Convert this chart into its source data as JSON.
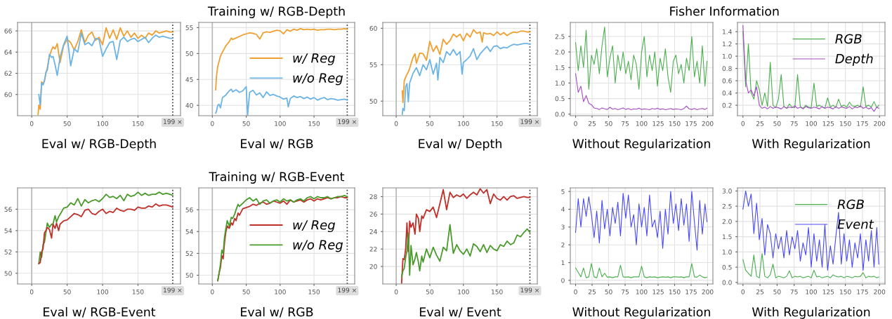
{
  "chart_data": [
    {
      "type": "line",
      "xlabel": "Eval w/ RGB-Depth",
      "xlim": [
        -20,
        210
      ],
      "xticks": [
        0,
        50,
        100,
        150
      ],
      "ylim": [
        58,
        66.8
      ],
      "yticks": [
        60,
        62,
        64,
        66
      ],
      "grid": true,
      "x": [
        9,
        10,
        12,
        14,
        16,
        18,
        20,
        22,
        25,
        28,
        30,
        33,
        36,
        40,
        45,
        50,
        55,
        60,
        65,
        70,
        75,
        80,
        85,
        90,
        95,
        100,
        105,
        110,
        115,
        120,
        125,
        130,
        135,
        140,
        145,
        150,
        155,
        160,
        165,
        170,
        175,
        180,
        185,
        190,
        195,
        199
      ],
      "series": [
        {
          "color": "#f0a030",
          "values": [
            58.1,
            59.0,
            58.6,
            61.2,
            61.0,
            61.3,
            62.0,
            62.5,
            63.6,
            64.2,
            64.5,
            64.3,
            64.8,
            63.0,
            64.6,
            65.2,
            64.9,
            64.2,
            65.0,
            66.1,
            64.9,
            65.6,
            65.9,
            65.1,
            65.4,
            64.7,
            66.3,
            65.3,
            66.1,
            65.2,
            66.3,
            65.5,
            66.0,
            65.4,
            65.8,
            65.3,
            65.6,
            65.3,
            65.8,
            65.6,
            66.0,
            65.8,
            65.9,
            66.0,
            65.9,
            65.9
          ]
        },
        {
          "color": "#6cb4e4",
          "values": [
            null,
            60.0,
            59.0,
            61.1,
            60.9,
            61.3,
            62.1,
            62.3,
            63.8,
            63.5,
            63.6,
            62.8,
            61.8,
            63.5,
            64.7,
            65.5,
            62.7,
            64.3,
            64.0,
            65.8,
            64.7,
            64.9,
            64.6,
            65.3,
            65.2,
            63.6,
            64.3,
            64.9,
            65.0,
            63.3,
            65.1,
            65.4,
            65.0,
            65.2,
            65.3,
            65.0,
            65.2,
            65.4,
            64.9,
            65.3,
            65.6,
            65.4,
            65.5,
            65.4,
            65.3,
            65.3
          ]
        }
      ],
      "ref_lines": [
        {
          "axis": "x",
          "value": 0,
          "color": "#b8b8b8",
          "line_style": "solid"
        },
        {
          "axis": "x",
          "value": 199,
          "label": "199 ×",
          "color": "#333333",
          "line_style": "dotted"
        }
      ]
    },
    {
      "type": "line",
      "title": "Training w/ RGB-Depth",
      "xlabel": "Eval w/ RGB",
      "xlim": [
        -20,
        210
      ],
      "xticks": [
        0,
        50,
        100,
        150
      ],
      "ylim": [
        38,
        56
      ],
      "yticks": [
        40,
        45,
        50,
        55
      ],
      "grid": true,
      "legend": "right",
      "series": [
        {
          "name": "w/ Reg",
          "color": "#f0a030",
          "x": [
            5,
            6,
            8,
            10,
            12,
            15,
            18,
            20,
            25,
            28,
            30,
            35,
            40,
            45,
            50,
            55,
            60,
            65,
            70,
            75,
            80,
            85,
            90,
            95,
            100,
            105,
            110,
            115,
            120,
            125,
            130,
            135,
            140,
            145,
            150,
            155,
            160,
            165,
            170,
            175,
            180,
            185,
            190,
            195,
            199
          ],
          "values": [
            43,
            45.5,
            47.5,
            48.5,
            49.5,
            50.3,
            51,
            51.5,
            52.3,
            53,
            52.7,
            53,
            53.3,
            53.6,
            53.8,
            54,
            53.9,
            53.7,
            52.8,
            54,
            54.2,
            54.1,
            54.3,
            54.5,
            54.4,
            53.8,
            54.6,
            54.3,
            54.7,
            54.5,
            54.8,
            54.6,
            54.7,
            54.6,
            54.7,
            54.5,
            54.6,
            54.6,
            54.7,
            54.7,
            54.6,
            54.7,
            54.7,
            54.8,
            54.7
          ]
        },
        {
          "name": "w/o Reg",
          "color": "#6cb4e4",
          "x": [
            5,
            6,
            8,
            10,
            12,
            15,
            18,
            20,
            25,
            28,
            30,
            35,
            40,
            45,
            50,
            52,
            55,
            60,
            65,
            70,
            75,
            80,
            85,
            90,
            95,
            100,
            105,
            110,
            112,
            115,
            120,
            125,
            130,
            135,
            140,
            145,
            150,
            155,
            160,
            165,
            170,
            175,
            180,
            185,
            190,
            195,
            199
          ],
          "values": [
            38.5,
            38.8,
            40,
            40.2,
            39.5,
            41.5,
            41.8,
            42,
            42.8,
            43.1,
            42.6,
            43,
            42.5,
            42.8,
            43.6,
            38.0,
            42.5,
            42.9,
            42,
            42.4,
            41.5,
            42.6,
            41.9,
            42.1,
            41.8,
            41.6,
            41.2,
            41.4,
            39.7,
            41.3,
            41.8,
            41.5,
            41.7,
            41.3,
            41.6,
            41.2,
            41.5,
            41.0,
            41.3,
            41.5,
            41.1,
            41.3,
            41.2,
            41.0,
            41.1,
            41.2,
            41.0
          ]
        }
      ],
      "ref_lines": [
        {
          "axis": "x",
          "value": 0,
          "color": "#b8b8b8",
          "line_style": "solid"
        },
        {
          "axis": "x",
          "value": 199,
          "label": "199 ×",
          "color": "#333333",
          "line_style": "dotted"
        }
      ]
    },
    {
      "type": "line",
      "xlabel": "Eval w/ Depth",
      "xlim": [
        -20,
        210
      ],
      "xticks": [
        0,
        50,
        100,
        150
      ],
      "ylim": [
        48,
        60.8
      ],
      "yticks": [
        50,
        55,
        60
      ],
      "grid": true,
      "series": [
        {
          "color": "#f0a030",
          "x": [
            9,
            10,
            12,
            15,
            18,
            20,
            25,
            28,
            30,
            35,
            40,
            45,
            50,
            55,
            60,
            65,
            70,
            75,
            80,
            85,
            90,
            95,
            100,
            105,
            110,
            115,
            120,
            125,
            128,
            130,
            135,
            140,
            145,
            150,
            155,
            160,
            165,
            170,
            175,
            180,
            185,
            190,
            195,
            199
          ],
          "values": [
            51.4,
            49.8,
            52.8,
            53.5,
            54,
            54.5,
            56,
            56.5,
            55.2,
            56.6,
            56.5,
            55.6,
            58.2,
            56.8,
            57.6,
            56.4,
            58.5,
            57.8,
            58.3,
            59.2,
            58.8,
            59.2,
            58.3,
            59.3,
            58.8,
            59.8,
            59.3,
            59.5,
            58.1,
            59.4,
            59.2,
            59.3,
            59.0,
            59.5,
            59.1,
            59.4,
            59.0,
            59.3,
            59.5,
            59.4,
            59.6,
            59.6,
            59.5,
            59.5
          ]
        },
        {
          "color": "#6cb4e4",
          "x": [
            9,
            10,
            12,
            14,
            16,
            18,
            20,
            25,
            30,
            35,
            40,
            45,
            50,
            55,
            60,
            62,
            65,
            70,
            75,
            80,
            85,
            90,
            95,
            98,
            100,
            105,
            110,
            115,
            120,
            125,
            130,
            135,
            140,
            145,
            150,
            155,
            160,
            165,
            170,
            175,
            180,
            185,
            190,
            195,
            199
          ],
          "values": [
            48.2,
            49,
            48.7,
            52,
            52.4,
            49.9,
            52.5,
            53.8,
            54.6,
            53.5,
            55,
            54.3,
            55.7,
            53.7,
            55.2,
            52.9,
            56.0,
            55.3,
            56.8,
            56.3,
            57.1,
            56.3,
            56.8,
            53.7,
            55.3,
            55.7,
            56.2,
            57.2,
            55.7,
            56.5,
            57.0,
            57.5,
            56.8,
            57.5,
            57.6,
            57.2,
            57.4,
            57.3,
            57.6,
            57.8,
            57.7,
            57.8,
            57.9,
            57.9,
            57.8
          ]
        }
      ],
      "ref_lines": [
        {
          "axis": "x",
          "value": 0,
          "color": "#b8b8b8",
          "line_style": "solid"
        },
        {
          "axis": "x",
          "value": 199,
          "label": "199 ×",
          "color": "#333333",
          "line_style": "dotted"
        }
      ]
    },
    {
      "type": "line",
      "title": "Fisher Information",
      "xlabel": "Without Regularization",
      "xlim": [
        -8,
        208
      ],
      "xticks": [
        0,
        25,
        50,
        75,
        100,
        125,
        150,
        175,
        200
      ],
      "ylim": [
        -0.05,
        2.95
      ],
      "yticks": [
        {
          "value": 0,
          "label": "0.0"
        },
        0.5,
        {
          "value": 1,
          "label": "1.0"
        },
        1.5,
        {
          "value": 2,
          "label": "2.0"
        },
        2.5
      ],
      "grid": true,
      "x": [
        0,
        4,
        8,
        12,
        16,
        20,
        24,
        28,
        32,
        36,
        40,
        44,
        48,
        52,
        56,
        60,
        64,
        68,
        72,
        76,
        80,
        84,
        88,
        92,
        96,
        100,
        104,
        108,
        112,
        116,
        120,
        124,
        128,
        132,
        136,
        140,
        144,
        148,
        152,
        156,
        160,
        164,
        168,
        172,
        176,
        180,
        184,
        188,
        192,
        196,
        199
      ],
      "series": [
        {
          "color": "#4caf50",
          "values": [
            2.3,
            1.4,
            2.2,
            1.5,
            2.7,
            0.8,
            1.9,
            1.6,
            2.1,
            1.3,
            2.2,
            2.8,
            1.2,
            1.8,
            2.2,
            1.0,
            1.9,
            1.4,
            2.0,
            1.3,
            1.7,
            1.1,
            1.9,
            1.6,
            0.8,
            2.0,
            2.5,
            1.2,
            1.9,
            1.4,
            2.0,
            0.9,
            1.8,
            1.4,
            2.1,
            1.2,
            0.7,
            1.7,
            1.9,
            1.3,
            1.6,
            1.0,
            1.8,
            1.4,
            2.5,
            1.2,
            1.7,
            1.0,
            2.2,
            0.9,
            1.7
          ]
        },
        {
          "color": "#a64dc4",
          "values": [
            1.3,
            0.7,
            0.9,
            0.4,
            0.6,
            0.35,
            0.3,
            0.2,
            0.18,
            0.15,
            0.2,
            0.17,
            0.15,
            0.22,
            0.16,
            0.18,
            0.14,
            0.17,
            0.2,
            0.15,
            0.18,
            0.14,
            0.17,
            0.16,
            0.19,
            0.15,
            0.17,
            0.16,
            0.14,
            0.18,
            0.16,
            0.19,
            0.15,
            0.17,
            0.14,
            0.16,
            0.18,
            0.15,
            0.17,
            0.16,
            0.14,
            0.18,
            0.26,
            0.17,
            0.15,
            0.18,
            0.14,
            0.17,
            0.18,
            0.15,
            0.19
          ]
        }
      ]
    },
    {
      "type": "line",
      "xlabel": "With Regularization",
      "xlim": [
        -8,
        208
      ],
      "xticks": [
        0,
        25,
        50,
        75,
        100,
        125,
        150,
        175,
        200
      ],
      "ylim": [
        0.03,
        1.55
      ],
      "yticks": [
        0.2,
        0.4,
        0.6,
        0.8,
        {
          "value": 1,
          "label": "1.0"
        },
        1.2,
        1.4
      ],
      "grid": true,
      "legend": "top right",
      "x": [
        0,
        4,
        8,
        12,
        16,
        20,
        24,
        28,
        32,
        36,
        40,
        44,
        48,
        52,
        56,
        60,
        64,
        68,
        72,
        76,
        80,
        84,
        88,
        92,
        96,
        100,
        104,
        108,
        112,
        116,
        120,
        124,
        128,
        132,
        136,
        140,
        144,
        148,
        152,
        156,
        160,
        164,
        168,
        172,
        176,
        180,
        184,
        188,
        192,
        196,
        199
      ],
      "series": [
        {
          "name": "RGB",
          "color": "#4caf50",
          "values": [
            1.4,
            0.5,
            1.2,
            0.4,
            0.3,
            0.6,
            0.45,
            0.2,
            0.4,
            0.18,
            0.9,
            0.2,
            0.16,
            0.3,
            0.7,
            0.18,
            0.15,
            0.22,
            0.17,
            0.16,
            0.7,
            0.18,
            0.15,
            0.2,
            0.17,
            0.16,
            0.56,
            0.18,
            0.2,
            0.17,
            0.15,
            0.32,
            0.17,
            0.2,
            0.16,
            0.3,
            0.18,
            0.2,
            0.17,
            0.25,
            0.19,
            0.18,
            0.2,
            0.17,
            0.5,
            0.18,
            0.2,
            0.17,
            0.26,
            0.16,
            0.2
          ]
        },
        {
          "name": "Depth",
          "color": "#a64dc4",
          "values": [
            1.5,
            0.6,
            0.4,
            0.45,
            0.35,
            0.5,
            0.2,
            0.15,
            0.17,
            0.14,
            0.18,
            0.15,
            0.17,
            0.16,
            0.14,
            0.18,
            0.15,
            0.17,
            0.16,
            0.19,
            0.15,
            0.17,
            0.14,
            0.18,
            0.16,
            0.15,
            0.17,
            0.16,
            0.14,
            0.18,
            0.15,
            0.17,
            0.16,
            0.14,
            0.18,
            0.15,
            0.17,
            0.16,
            0.15,
            0.18,
            0.14,
            0.17,
            0.16,
            0.19,
            0.15,
            0.17,
            0.14,
            0.16,
            0.1,
            0.17,
            0.15
          ]
        }
      ]
    },
    {
      "type": "line",
      "xlabel": "Eval w/ RGB-Event",
      "xlim": [
        -20,
        210
      ],
      "xticks": [
        0,
        50,
        100,
        150
      ],
      "ylim": [
        49,
        58
      ],
      "yticks": [
        50,
        52,
        54,
        56
      ],
      "grid": true,
      "x": [
        10,
        12,
        14,
        16,
        18,
        20,
        22,
        25,
        28,
        30,
        33,
        35,
        38,
        40,
        45,
        50,
        55,
        60,
        65,
        70,
        75,
        80,
        85,
        90,
        95,
        100,
        105,
        110,
        115,
        120,
        125,
        130,
        135,
        140,
        145,
        150,
        155,
        160,
        165,
        170,
        175,
        180,
        185,
        190,
        195,
        199
      ],
      "series": [
        {
          "color": "#4a9a2c",
          "values": [
            50.9,
            52,
            51.5,
            52.7,
            52.9,
            53.8,
            54.7,
            54.3,
            54.6,
            54.6,
            55.4,
            54.8,
            55.3,
            55.5,
            56.1,
            56.2,
            56.6,
            56.4,
            57.0,
            56.3,
            56.9,
            56.6,
            56.8,
            56.9,
            56.7,
            57.0,
            57.4,
            57.1,
            57.2,
            57.0,
            57.3,
            56.8,
            57.4,
            57.2,
            57.3,
            57.6,
            57.3,
            57.5,
            57.3,
            57.4,
            57.4,
            57.6,
            57.4,
            57.5,
            57.4,
            57.3
          ]
        },
        {
          "color": "#c0302a",
          "values": [
            50.9,
            51.0,
            52,
            52.3,
            53.8,
            54.0,
            54.3,
            54.1,
            53.3,
            54.6,
            54.2,
            54.7,
            54.0,
            54.6,
            54.9,
            55.0,
            55.3,
            55.6,
            55.5,
            55.3,
            55.9,
            56.0,
            55.6,
            55.5,
            55.8,
            56.0,
            55.6,
            55.8,
            55.7,
            56.1,
            55.9,
            55.8,
            56.0,
            56.0,
            55.9,
            56.2,
            56.1,
            56.1,
            56.3,
            56.2,
            56.5,
            56.3,
            56.4,
            56.4,
            56.3,
            56.2
          ]
        }
      ],
      "ref_lines": [
        {
          "axis": "x",
          "value": 0,
          "color": "#b8b8b8",
          "line_style": "solid"
        },
        {
          "axis": "x",
          "value": 199,
          "label": "199 ×",
          "color": "#333333",
          "line_style": "dotted"
        }
      ]
    },
    {
      "type": "line",
      "title": "Training w/ RGB-Event",
      "xlabel": "Eval w/ RGB",
      "xlim": [
        -20,
        210
      ],
      "xticks": [
        0,
        50,
        100,
        150
      ],
      "ylim": [
        49.2,
        58
      ],
      "yticks": [
        50,
        52,
        54,
        56
      ],
      "grid": true,
      "legend": "right",
      "x": [
        8,
        10,
        12,
        14,
        16,
        18,
        20,
        22,
        25,
        28,
        30,
        33,
        35,
        38,
        40,
        45,
        50,
        55,
        60,
        65,
        70,
        75,
        80,
        85,
        90,
        95,
        100,
        105,
        110,
        115,
        120,
        125,
        130,
        135,
        140,
        145,
        150,
        155,
        160,
        165,
        170,
        175,
        180,
        185,
        190,
        195,
        199
      ],
      "series": [
        {
          "name": "w/ Reg",
          "color": "#c0302a",
          "values": [
            49.5,
            50.2,
            50.7,
            51.8,
            51.5,
            53.0,
            54.0,
            54.5,
            54.3,
            54.8,
            54.6,
            55.2,
            55.0,
            55.7,
            55.5,
            56.1,
            56.2,
            56.3,
            56.5,
            56.4,
            56.6,
            56.7,
            56.5,
            56.6,
            56.8,
            56.7,
            56.6,
            56.8,
            56.5,
            56.9,
            56.7,
            56.8,
            56.9,
            56.7,
            56.9,
            57.0,
            56.8,
            57.0,
            56.9,
            57.0,
            57.1,
            57.0,
            57.1,
            57.1,
            57.2,
            57.1,
            57.1
          ]
        },
        {
          "name": "w/o Reg",
          "color": "#4a9a2c",
          "values": [
            49.5,
            50.2,
            51,
            52.3,
            52.0,
            53.5,
            54.3,
            55.0,
            54.5,
            55.3,
            55.2,
            55.6,
            56.0,
            56.5,
            56.3,
            56.6,
            56.9,
            57.1,
            56.8,
            57.0,
            56.5,
            56.8,
            56.9,
            56.6,
            56.8,
            56.9,
            56.7,
            57.0,
            56.8,
            56.9,
            56.7,
            56.9,
            57.0,
            56.8,
            57.1,
            57.2,
            57.0,
            57.2,
            57.1,
            57.1,
            57.2,
            57.0,
            57.1,
            57.2,
            57.2,
            57.3,
            57.2
          ]
        }
      ],
      "ref_lines": [
        {
          "axis": "x",
          "value": 0,
          "color": "#b8b8b8",
          "line_style": "solid"
        },
        {
          "axis": "x",
          "value": 199,
          "label": "199 ×",
          "color": "#333333",
          "line_style": "dotted"
        }
      ]
    },
    {
      "type": "line",
      "xlabel": "Eval w/ Event",
      "xlim": [
        -20,
        210
      ],
      "xticks": [
        0,
        50,
        100,
        150
      ],
      "ylim": [
        18,
        29
      ],
      "yticks": [
        20,
        22,
        24,
        26,
        28
      ],
      "grid": true,
      "x": [
        8,
        10,
        12,
        14,
        16,
        18,
        20,
        22,
        25,
        28,
        30,
        33,
        35,
        38,
        40,
        45,
        50,
        55,
        60,
        65,
        70,
        75,
        80,
        85,
        90,
        95,
        100,
        105,
        110,
        115,
        120,
        125,
        130,
        135,
        140,
        145,
        150,
        155,
        160,
        165,
        170,
        175,
        180,
        185,
        190,
        195,
        199
      ],
      "series": [
        {
          "color": "#c0302a",
          "values": [
            18.1,
            20.9,
            20.8,
            22,
            25,
            21.7,
            25.2,
            24.5,
            25,
            23.7,
            26,
            25.5,
            24,
            25.8,
            25.5,
            26.5,
            26.3,
            26.8,
            25.6,
            27.2,
            28.8,
            26.5,
            28.5,
            27.9,
            28.2,
            28.0,
            28.3,
            27.8,
            28.2,
            28.5,
            28.2,
            28.9,
            28.4,
            28.8,
            27.2,
            28.3,
            27.8,
            27.6,
            28.0,
            27.6,
            28.0,
            28.1,
            27.8,
            27.9,
            28.0,
            27.9,
            27.9
          ]
        },
        {
          "color": "#4a9a2c",
          "values": [
            18.8,
            19.5,
            19.8,
            21.0,
            21.8,
            23.8,
            19.0,
            22.4,
            20.2,
            20.9,
            21.6,
            20.5,
            19.5,
            21.2,
            20.5,
            22.0,
            21.0,
            22.2,
            21.3,
            20.6,
            22.2,
            21.8,
            24.8,
            21.5,
            22.5,
            21.8,
            21.4,
            22.0,
            21.2,
            22.6,
            22.3,
            21.7,
            22.5,
            21.6,
            22.4,
            22.0,
            21.8,
            22.5,
            22.3,
            22.9,
            22.5,
            22.7,
            23.6,
            23.4,
            23.9,
            24.3,
            23.9
          ]
        }
      ],
      "ref_lines": [
        {
          "axis": "x",
          "value": 0,
          "color": "#b8b8b8",
          "line_style": "solid"
        },
        {
          "axis": "x",
          "value": 199,
          "label": "199 ×",
          "color": "#333333",
          "line_style": "dotted"
        }
      ]
    },
    {
      "type": "line",
      "xlabel": "Without Regularization",
      "xlim": [
        -8,
        208
      ],
      "xticks": [
        0,
        25,
        50,
        75,
        100,
        125,
        150,
        175,
        200
      ],
      "ylim": [
        -0.2,
        5.2
      ],
      "yticks": [
        0,
        1,
        2,
        3,
        4,
        5
      ],
      "grid": true,
      "x": [
        0,
        4,
        8,
        12,
        16,
        20,
        24,
        28,
        32,
        36,
        40,
        44,
        48,
        52,
        56,
        60,
        64,
        68,
        72,
        76,
        80,
        84,
        88,
        92,
        96,
        100,
        104,
        108,
        112,
        116,
        120,
        124,
        128,
        132,
        136,
        140,
        144,
        148,
        152,
        156,
        160,
        164,
        168,
        172,
        176,
        180,
        184,
        188,
        192,
        196,
        199
      ],
      "series": [
        {
          "color": "#4a4af5",
          "values": [
            2.7,
            4.6,
            3.0,
            4.6,
            3.6,
            4.7,
            3.7,
            2.4,
            3.9,
            2.1,
            4.5,
            2.9,
            4.0,
            2.5,
            4.1,
            3.2,
            4.4,
            2.5,
            4.9,
            3.5,
            4.8,
            3.0,
            3.7,
            2.0,
            4.3,
            3.0,
            4.1,
            2.5,
            4.8,
            3.0,
            3.4,
            2.4,
            3.9,
            1.8,
            4.0,
            2.6,
            5.0,
            3.2,
            4.3,
            2.8,
            4.6,
            3.1,
            4.3,
            2.2,
            5.0,
            3.3,
            1.7,
            4.5,
            2.6,
            4.3,
            3.3
          ]
        },
        {
          "color": "#4caf50",
          "values": [
            0.7,
            0.45,
            0.2,
            0.7,
            0.15,
            0.2,
            0.95,
            0.2,
            0.15,
            0.7,
            0.2,
            0.4,
            0.18,
            0.2,
            0.15,
            0.2,
            0.2,
            0.85,
            0.2,
            0.18,
            0.2,
            0.15,
            0.2,
            0.2,
            0.2,
            0.8,
            0.2,
            0.15,
            0.2,
            0.18,
            0.2,
            0.15,
            0.18,
            0.2,
            0.18,
            0.2,
            0.15,
            0.2,
            0.2,
            0.18,
            0.2,
            0.15,
            0.2,
            0.2,
            0.95,
            0.2,
            0.18,
            0.3,
            0.2,
            0.15,
            0.18
          ]
        }
      ]
    },
    {
      "type": "line",
      "xlabel": "With Regularization",
      "xlim": [
        -8,
        208
      ],
      "xticks": [
        0,
        25,
        50,
        75,
        100,
        125,
        150,
        175,
        200
      ],
      "ylim": [
        -0.05,
        3.1
      ],
      "yticks": [
        {
          "value": 0,
          "label": "0.0"
        },
        0.5,
        {
          "value": 1,
          "label": "1.0"
        },
        1.5,
        {
          "value": 2,
          "label": "2.0"
        },
        2.5,
        {
          "value": 3,
          "label": "3.0"
        }
      ],
      "grid": true,
      "legend": "top right",
      "x": [
        0,
        4,
        8,
        12,
        16,
        20,
        24,
        28,
        32,
        36,
        40,
        44,
        48,
        52,
        56,
        60,
        64,
        68,
        72,
        76,
        80,
        84,
        88,
        92,
        96,
        100,
        104,
        108,
        112,
        116,
        120,
        124,
        128,
        132,
        136,
        140,
        144,
        148,
        152,
        156,
        160,
        164,
        168,
        172,
        176,
        180,
        184,
        188,
        192,
        196,
        199
      ],
      "series": [
        {
          "name": "RGB",
          "color": "#4caf50",
          "values": [
            0.75,
            0.4,
            0.3,
            0.2,
            0.9,
            0.2,
            0.15,
            0.95,
            0.2,
            0.15,
            0.25,
            0.6,
            0.15,
            0.2,
            0.18,
            0.15,
            0.2,
            0.38,
            0.15,
            0.2,
            0.18,
            0.2,
            0.15,
            0.18,
            0.2,
            0.15,
            0.4,
            0.18,
            0.2,
            0.15,
            0.18,
            0.2,
            0.15,
            0.25,
            0.2,
            0.18,
            0.2,
            0.15,
            0.2,
            0.18,
            0.15,
            0.2,
            0.18,
            0.2,
            0.32,
            0.15,
            0.2,
            0.18,
            0.2,
            0.15,
            0.18
          ]
        },
        {
          "name": "Event",
          "color": "#4a4af5",
          "values": [
            2.4,
            3.0,
            2.5,
            2.9,
            1.6,
            2.6,
            1.4,
            2.1,
            0.9,
            1.9,
            1.6,
            0.8,
            1.6,
            1.1,
            1.5,
            0.8,
            1.7,
            0.9,
            1.5,
            1.1,
            1.7,
            0.7,
            1.3,
            0.9,
            1.8,
            0.5,
            1.6,
            0.7,
            1.4,
            0.5,
            1.9,
            0.4,
            1.2,
            0.6,
            1.5,
            2.3,
            0.6,
            1.6,
            0.7,
            1.4,
            0.5,
            1.3,
            0.8,
            1.6,
            0.4,
            1.4,
            0.7,
            1.7,
            0.5,
            1.8,
            0.6
          ]
        }
      ]
    }
  ]
}
